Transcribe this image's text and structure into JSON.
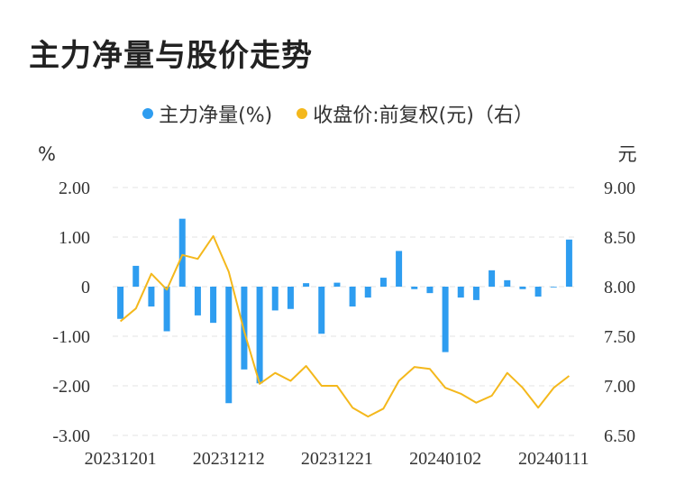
{
  "title": "主力净量与股价走势",
  "chart_data": {
    "type": "bar+line",
    "title": "主力净量与股价走势",
    "legend": [
      {
        "name": "主力净量(%)",
        "color": "#2e9df0"
      },
      {
        "name": "收盘价:前复权(元)（右）",
        "color": "#f4b81c"
      }
    ],
    "legend_position": "top",
    "y_left_unit": "%",
    "y_right_unit": "元",
    "y_left_range": [
      -3,
      2
    ],
    "y_right_range": [
      6.5,
      9.0
    ],
    "y_left_ticks": [
      "2.00",
      "1.00",
      "0",
      "-1.00",
      "-2.00",
      "-3.00"
    ],
    "y_right_ticks": [
      "9.00",
      "8.50",
      "8.00",
      "7.50",
      "7.00",
      "6.50"
    ],
    "x_tick_labels": [
      "20231201",
      "20231212",
      "20231221",
      "20240102",
      "20240111"
    ],
    "grid": true,
    "series": [
      {
        "name": "主力净量(%)",
        "type": "bar",
        "axis": "left",
        "values": [
          -0.65,
          0.42,
          -0.4,
          -0.9,
          1.37,
          -0.58,
          -0.73,
          -2.35,
          -1.67,
          -1.95,
          -0.48,
          -0.45,
          0.07,
          -0.95,
          0.08,
          -0.4,
          -0.22,
          0.18,
          0.72,
          -0.05,
          -0.13,
          -1.32,
          -0.22,
          -0.27,
          0.33,
          0.13,
          -0.05,
          -0.2,
          0.0,
          0.95
        ]
      },
      {
        "name": "收盘价:前复权(元)（右）",
        "type": "line",
        "axis": "right",
        "values": [
          7.65,
          7.78,
          8.13,
          7.97,
          8.32,
          8.28,
          8.51,
          8.15,
          7.55,
          7.02,
          7.13,
          7.05,
          7.2,
          7.0,
          7.0,
          6.78,
          6.69,
          6.77,
          7.05,
          7.19,
          7.17,
          6.98,
          6.92,
          6.83,
          6.9,
          7.13,
          6.98,
          6.78,
          6.98,
          7.1
        ]
      }
    ]
  }
}
